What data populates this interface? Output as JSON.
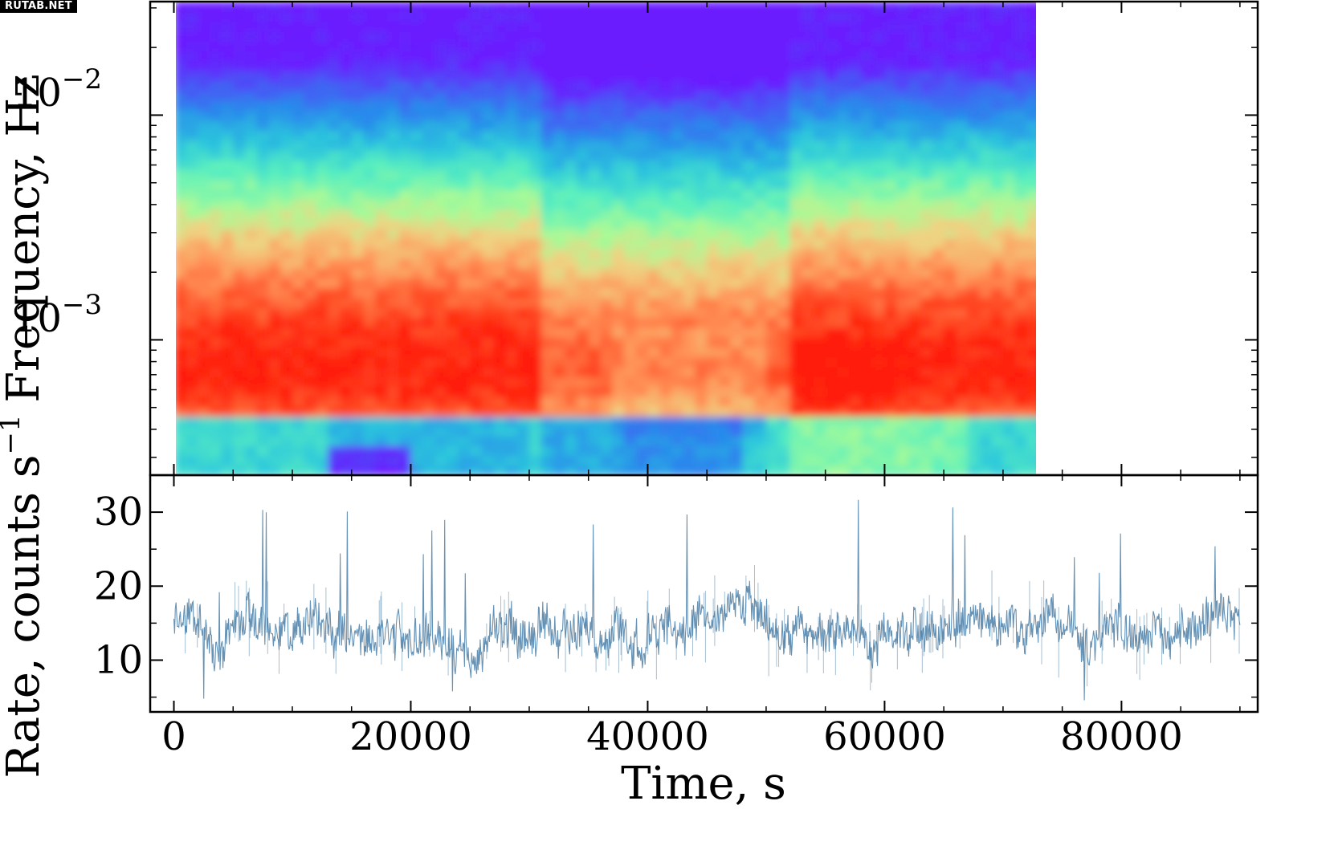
{
  "watermark": "RUTAB.NET",
  "chart_data": [
    {
      "type": "heatmap",
      "panel": "dynamic power spectrum",
      "ylabel": "Frequency, Hz",
      "yscale": "log",
      "xlim": [
        -1000,
        91500
      ],
      "ylim": [
        0.00025,
        0.032
      ],
      "time_coverage": [
        0,
        74000
      ],
      "ytick_labels": [
        {
          "value": 0.01,
          "base": "10",
          "exp": "−2"
        },
        {
          "value": 0.001,
          "base": "10",
          "exp": "−3"
        }
      ],
      "colormap": "rainbow",
      "colors": {
        "low": "#6a1bff",
        "mid": "#3fd6c8",
        "high": "#ff2a10"
      },
      "description_bands": [
        {
          "freq_range": [
            0.005,
            0.032
          ],
          "level": "low"
        },
        {
          "freq_range": [
            0.0025,
            0.005
          ],
          "level": "mid-low"
        },
        {
          "freq_range": [
            0.0013,
            0.0025
          ],
          "level": "mid"
        },
        {
          "freq_range": [
            0.0006,
            0.0013
          ],
          "level": "high",
          "peak_freq": 0.0008
        },
        {
          "freq_range": [
            0.00025,
            0.0005
          ],
          "level": "mid-low"
        }
      ]
    },
    {
      "type": "line",
      "panel": "light curve",
      "xlabel": "Time, s",
      "ylabel": "Rate, counts s",
      "ylabel_exp": "−1",
      "xlim": [
        -2000,
        91500
      ],
      "ylim": [
        3,
        35
      ],
      "mean_rate": 14.5,
      "rate_range": [
        4,
        33
      ],
      "x_range": [
        0,
        90000
      ],
      "series_color": "#4a7fa8",
      "xtick_labels": [
        "0",
        "20000",
        "40000",
        "60000",
        "80000"
      ],
      "xtick_values": [
        0,
        20000,
        40000,
        60000,
        80000
      ],
      "ytick_labels": [
        "10",
        "20",
        "30"
      ],
      "ytick_values": [
        10,
        20,
        30
      ]
    }
  ]
}
